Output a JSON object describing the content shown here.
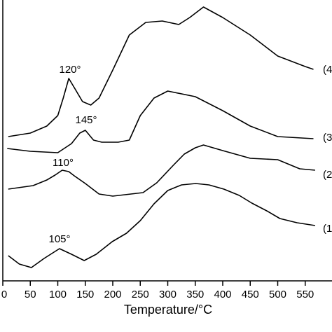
{
  "chart_data": {
    "type": "line",
    "xlabel": "Temperature/°C",
    "xlim": [
      0,
      600
    ],
    "xticks": [
      0,
      50,
      100,
      150,
      200,
      250,
      300,
      350,
      400,
      450,
      500,
      550
    ],
    "ylim": [
      0,
      401
    ],
    "annotations": [
      "120°",
      "145°",
      "110°",
      "105°"
    ],
    "series": [
      {
        "name": "(1",
        "color": "#000000",
        "x": [
          10,
          30,
          52,
          75,
          103,
          125,
          148,
          170,
          199,
          225,
          250,
          275,
          300,
          325,
          351,
          375,
          402,
          430,
          453,
          480,
          504,
          535,
          568
        ],
        "values": [
          36,
          24,
          19,
          32,
          46,
          38,
          29,
          38,
          56,
          68,
          86,
          110,
          129,
          137,
          139,
          137,
          131,
          122,
          111,
          100,
          89,
          83,
          79
        ]
      },
      {
        "name": "(2",
        "color": "#000000",
        "x": [
          10,
          55,
          80,
          95,
          108,
          120,
          130,
          150,
          175,
          200,
          255,
          280,
          310,
          330,
          350,
          365,
          400,
          450,
          500,
          540,
          568
        ],
        "values": [
          131,
          136,
          144,
          151,
          158,
          156,
          150,
          139,
          124,
          121,
          126,
          140,
          165,
          181,
          190,
          194,
          186,
          175,
          173,
          160,
          158
        ]
      },
      {
        "name": "(3",
        "color": "#000000",
        "x": [
          8,
          50,
          100,
          125,
          140,
          150,
          165,
          180,
          210,
          230,
          250,
          275,
          300,
          350,
          400,
          450,
          500,
          565
        ],
        "values": [
          189,
          185,
          183,
          196,
          211,
          215,
          201,
          198,
          198,
          201,
          236,
          261,
          271,
          263,
          243,
          221,
          206,
          203
        ]
      },
      {
        "name": "(4",
        "color": "#000000",
        "x": [
          10,
          50,
          80,
          100,
          110,
          120,
          130,
          145,
          160,
          175,
          200,
          230,
          260,
          290,
          320,
          340,
          365,
          400,
          450,
          500,
          550,
          565
        ],
        "values": [
          206,
          211,
          221,
          236,
          261,
          289,
          276,
          256,
          251,
          261,
          301,
          351,
          369,
          371,
          366,
          376,
          391,
          376,
          351,
          321,
          306,
          302
        ]
      }
    ]
  }
}
